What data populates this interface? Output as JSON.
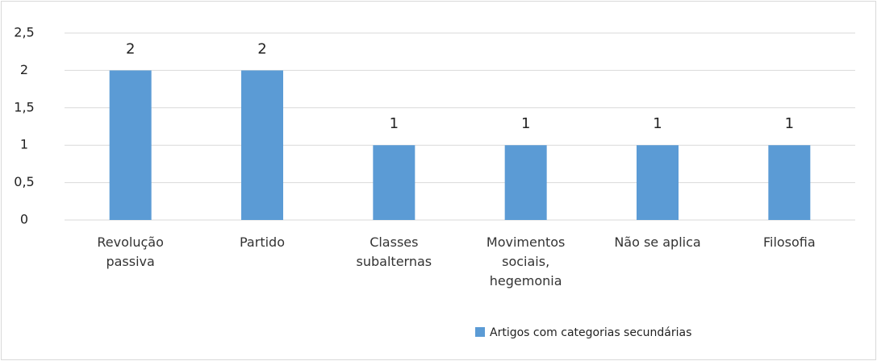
{
  "chart_data": {
    "type": "bar",
    "categories": [
      "Revolução passiva",
      "Partido",
      "Classes subalternas",
      "Movimentos sociais, hegemonia",
      "Não se aplica",
      "Filosofia"
    ],
    "series": [
      {
        "name": "Artigos com categorias secundárias",
        "color": "#5b9bd5",
        "values": [
          2,
          2,
          1,
          1,
          1,
          1
        ]
      }
    ],
    "ylim": [
      0,
      2.5
    ],
    "yticks": [
      0,
      {
        "value": 0.5,
        "label": "0,5"
      },
      1,
      {
        "value": 1.5,
        "label": "1,5"
      },
      2,
      {
        "value": 2.5,
        "label": "2,5"
      }
    ],
    "grid": true,
    "legend": "bottom"
  }
}
